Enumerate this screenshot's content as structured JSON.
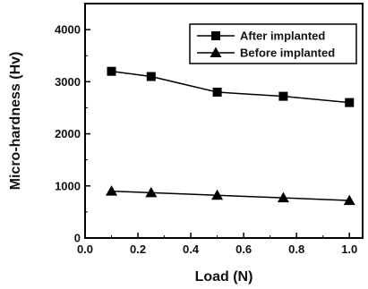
{
  "chart_data": {
    "type": "line",
    "title": "",
    "xlabel": "Load  (N)",
    "ylabel": "Micro-hardness  (Hv)",
    "xlim": [
      0.0,
      1.05
    ],
    "ylim": [
      0,
      4500
    ],
    "x_ticks": [
      0.0,
      0.2,
      0.4,
      0.6,
      0.8,
      1.0
    ],
    "x_tick_labels": [
      "0.0",
      "0.2",
      "0.4",
      "0.6",
      "0.8",
      "1.0"
    ],
    "y_ticks": [
      0,
      1000,
      2000,
      3000,
      4000
    ],
    "y_tick_labels": [
      "0",
      "1000",
      "2000",
      "3000",
      "4000"
    ],
    "grid": false,
    "legend_position": "top-right",
    "series": [
      {
        "name": "After implanted",
        "marker": "square",
        "x": [
          0.1,
          0.25,
          0.5,
          0.75,
          1.0
        ],
        "y": [
          3200,
          3100,
          2800,
          2720,
          2600
        ]
      },
      {
        "name": "Before implanted",
        "marker": "triangle",
        "x": [
          0.1,
          0.25,
          0.5,
          0.75,
          1.0
        ],
        "y": [
          900,
          870,
          820,
          770,
          720
        ]
      }
    ]
  }
}
